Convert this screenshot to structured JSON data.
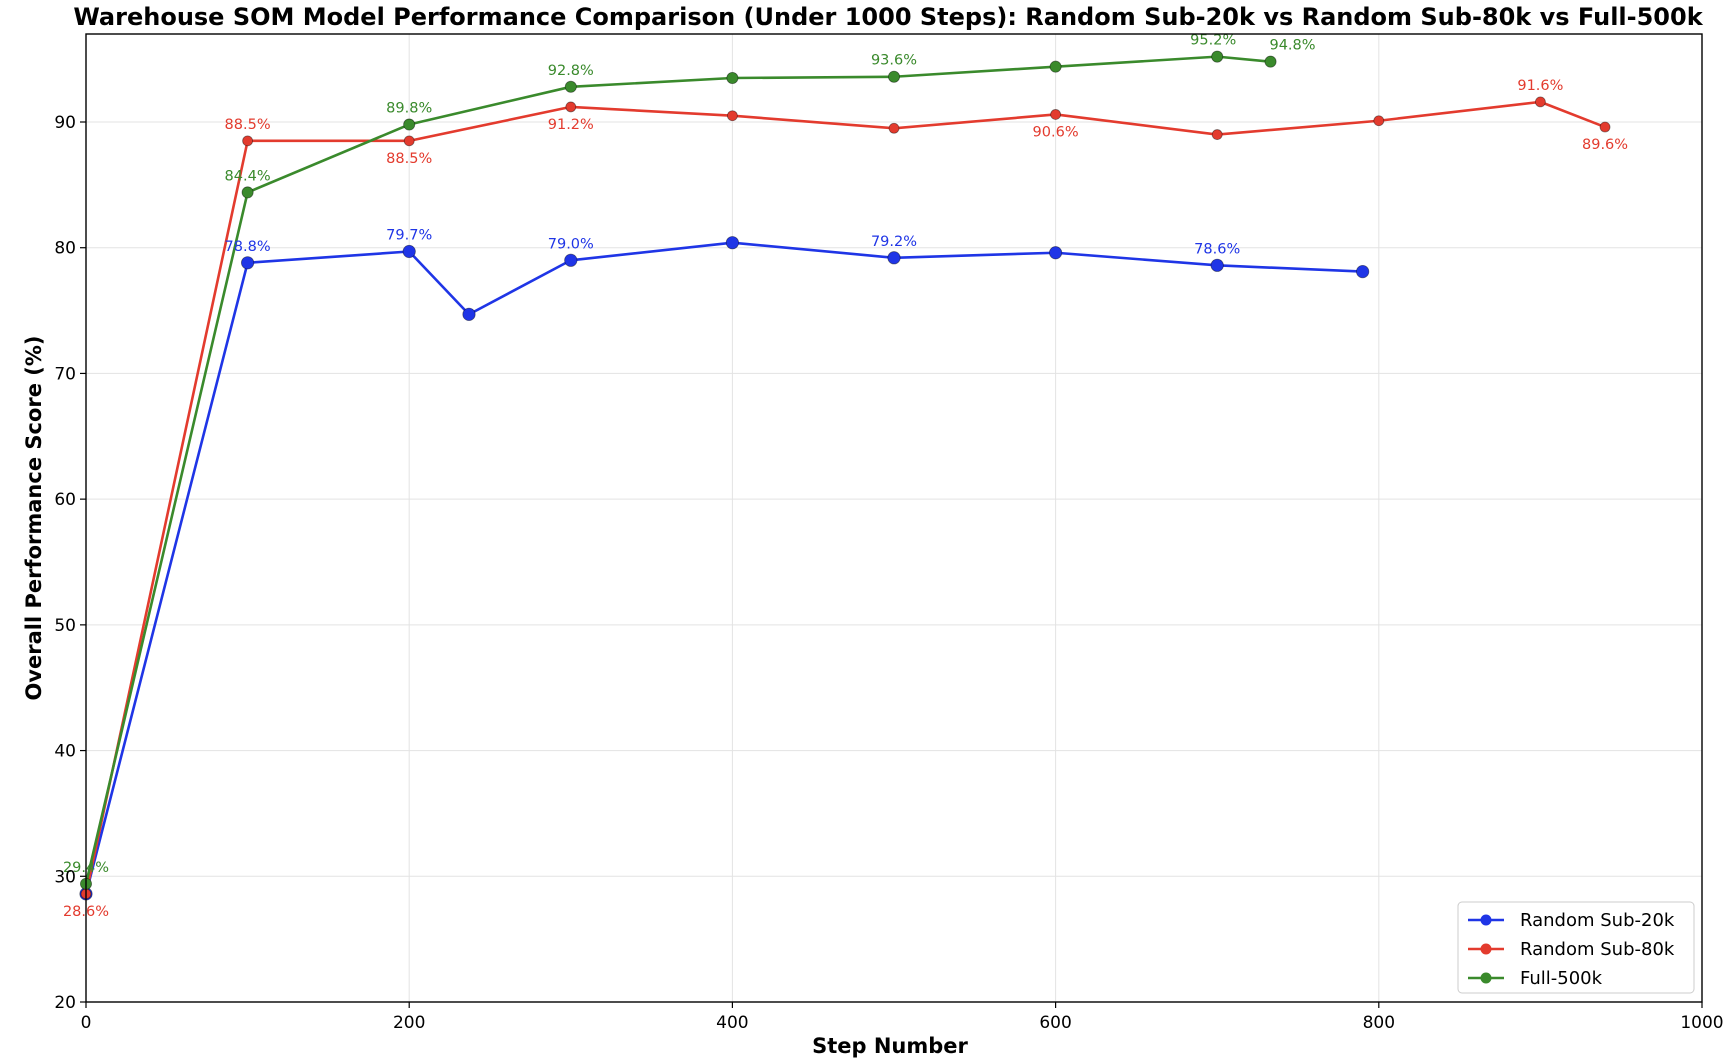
{
  "chart_data": {
    "type": "line",
    "title": "Warehouse SOM Model Performance Comparison (Under 1000 Steps): Random Sub-20k vs Random Sub-80k vs Full-500k",
    "xlabel": "Step Number",
    "ylabel": "Overall Performance Score (%)",
    "xlim": [
      0,
      1000
    ],
    "ylim": [
      20,
      97
    ],
    "xticks": [
      0,
      200,
      400,
      600,
      800,
      1000
    ],
    "yticks": [
      20,
      30,
      40,
      50,
      60,
      70,
      80,
      90
    ],
    "grid": true,
    "legend_position": "bottom-right",
    "series": [
      {
        "name": "Random Sub-20k",
        "color": "#1f35e6",
        "x": [
          0,
          100,
          200,
          237,
          300,
          400,
          500,
          600,
          700,
          790
        ],
        "y": [
          28.6,
          78.8,
          79.7,
          74.7,
          79.0,
          80.4,
          79.2,
          79.6,
          78.6,
          78.1
        ],
        "labels": [
          "",
          "78.8%",
          "79.7%",
          "",
          "79.0%",
          "",
          "79.2%",
          "",
          "78.6%",
          ""
        ]
      },
      {
        "name": "Random Sub-80k",
        "color": "#e33b2e",
        "x": [
          0,
          100,
          200,
          300,
          400,
          500,
          600,
          700,
          800,
          900,
          940
        ],
        "y": [
          28.6,
          88.5,
          88.5,
          91.2,
          90.5,
          89.5,
          90.6,
          89.0,
          90.1,
          91.6,
          89.6
        ],
        "labels": [
          "28.6%",
          "88.5%",
          "88.5%",
          "91.2%",
          "",
          "",
          "90.6%",
          "",
          "",
          "91.6%",
          "89.6%"
        ]
      },
      {
        "name": "Full-500k",
        "color": "#3a8a2c",
        "x": [
          0,
          100,
          200,
          300,
          400,
          500,
          600,
          700,
          733
        ],
        "y": [
          29.4,
          84.4,
          89.8,
          92.8,
          93.5,
          93.6,
          94.4,
          95.2,
          94.8
        ],
        "labels": [
          "29.4%",
          "84.4%",
          "89.8%",
          "92.8%",
          "",
          "93.6%",
          "",
          "95.2%",
          "94.8%"
        ]
      }
    ]
  }
}
